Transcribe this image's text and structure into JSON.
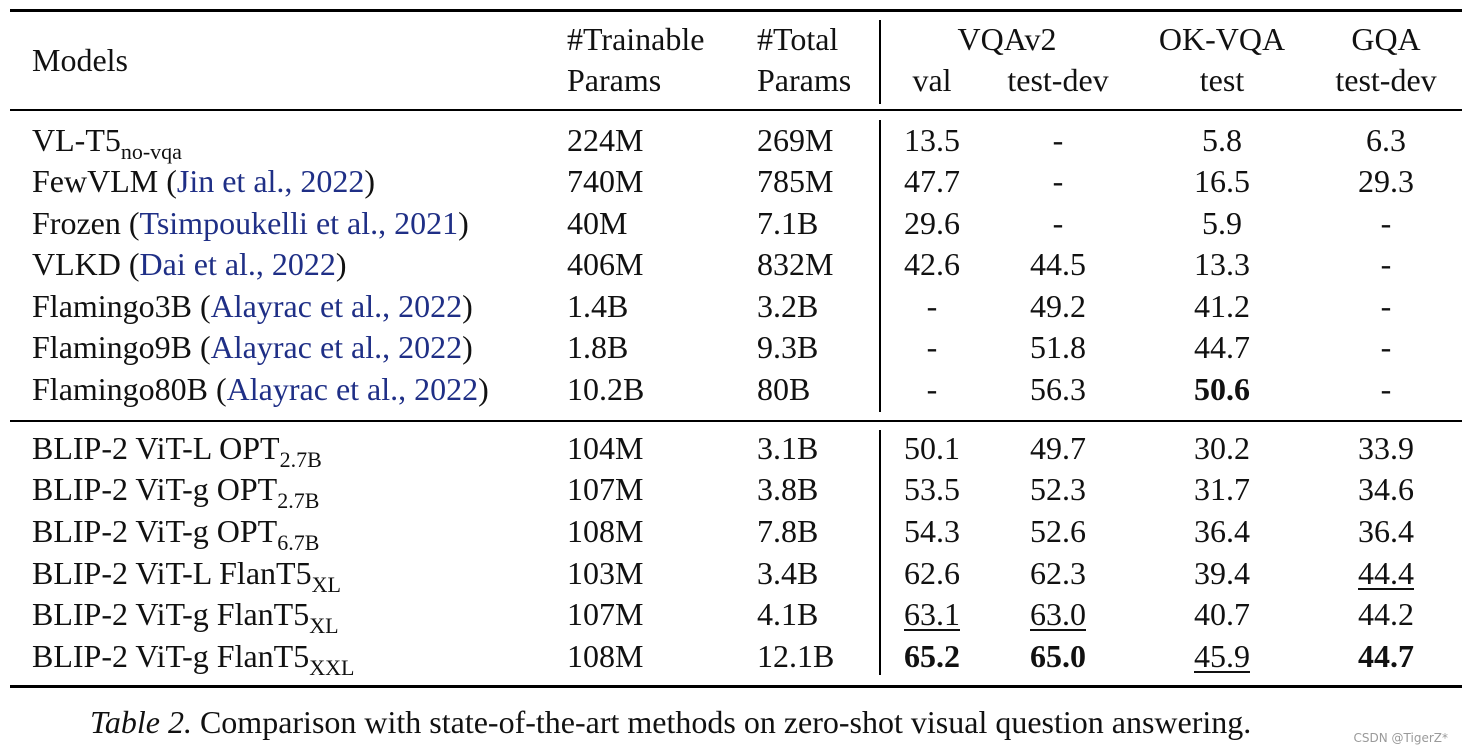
{
  "header": {
    "models": "Models",
    "trainable_1": "#Trainable",
    "trainable_2": "Params",
    "total_1": "#Total",
    "total_2": "Params",
    "vqav2": "VQAv2",
    "vqav2_val": "val",
    "vqav2_testdev": "test-dev",
    "okvqa": "OK-VQA",
    "okvqa_test": "test",
    "gqa": "GQA",
    "gqa_testdev": "test-dev"
  },
  "rows": [
    {
      "name": "VL-T5",
      "sub": "no-vqa",
      "paren_open": "",
      "cite": "",
      "paren_close": "",
      "trainable": "224M",
      "total": "269M",
      "val": "13.5",
      "testdev": "-",
      "okvqa": "5.8",
      "gqa": "6.3"
    },
    {
      "name": "FewVLM ",
      "sub": "",
      "paren_open": "(",
      "cite": "Jin et al., 2022",
      "paren_close": ")",
      "trainable": "740M",
      "total": "785M",
      "val": "47.7",
      "testdev": "-",
      "okvqa": "16.5",
      "gqa": "29.3"
    },
    {
      "name": "Frozen ",
      "sub": "",
      "paren_open": "(",
      "cite": "Tsimpoukelli et al., 2021",
      "paren_close": ")",
      "trainable": "40M",
      "total": "7.1B",
      "val": "29.6",
      "testdev": "-",
      "okvqa": "5.9",
      "gqa": "-"
    },
    {
      "name": "VLKD ",
      "sub": "",
      "paren_open": "(",
      "cite": "Dai et al., 2022",
      "paren_close": ")",
      "trainable": "406M",
      "total": "832M",
      "val": "42.6",
      "testdev": "44.5",
      "okvqa": "13.3",
      "gqa": "-"
    },
    {
      "name": "Flamingo3B ",
      "sub": "",
      "paren_open": "(",
      "cite": "Alayrac et al., 2022",
      "paren_close": ")",
      "trainable": "1.4B",
      "total": "3.2B",
      "val": "-",
      "testdev": "49.2",
      "okvqa": "41.2",
      "gqa": "-"
    },
    {
      "name": "Flamingo9B ",
      "sub": "",
      "paren_open": "(",
      "cite": "Alayrac et al., 2022",
      "paren_close": ")",
      "trainable": "1.8B",
      "total": "9.3B",
      "val": "-",
      "testdev": "51.8",
      "okvqa": "44.7",
      "gqa": "-"
    },
    {
      "name": "Flamingo80B ",
      "sub": "",
      "paren_open": "(",
      "cite": "Alayrac et al., 2022",
      "paren_close": ")",
      "trainable": "10.2B",
      "total": "80B",
      "val": "-",
      "testdev": "56.3",
      "okvqa": "50.6",
      "gqa": "-"
    },
    {
      "name": "BLIP-2 ViT-L OPT",
      "sub": "2.7B",
      "paren_open": "",
      "cite": "",
      "paren_close": "",
      "trainable": "104M",
      "total": "3.1B",
      "val": "50.1",
      "testdev": "49.7",
      "okvqa": "30.2",
      "gqa": "33.9"
    },
    {
      "name": "BLIP-2 ViT-g OPT",
      "sub": "2.7B",
      "paren_open": "",
      "cite": "",
      "paren_close": "",
      "trainable": "107M",
      "total": "3.8B",
      "val": "53.5",
      "testdev": "52.3",
      "okvqa": "31.7",
      "gqa": "34.6"
    },
    {
      "name": "BLIP-2 ViT-g OPT",
      "sub": "6.7B",
      "paren_open": "",
      "cite": "",
      "paren_close": "",
      "trainable": "108M",
      "total": "7.8B",
      "val": "54.3",
      "testdev": "52.6",
      "okvqa": "36.4",
      "gqa": "36.4"
    },
    {
      "name": "BLIP-2 ViT-L FlanT5",
      "sub": "XL",
      "paren_open": "",
      "cite": "",
      "paren_close": "",
      "trainable": "103M",
      "total": "3.4B",
      "val": "62.6",
      "testdev": "62.3",
      "okvqa": "39.4",
      "gqa": "44.4"
    },
    {
      "name": "BLIP-2 ViT-g FlanT5",
      "sub": "XL",
      "paren_open": "",
      "cite": "",
      "paren_close": "",
      "trainable": "107M",
      "total": "4.1B",
      "val": "63.1",
      "testdev": "63.0",
      "okvqa": "40.7",
      "gqa": "44.2"
    },
    {
      "name": "BLIP-2 ViT-g FlanT5",
      "sub": "XXL",
      "paren_open": "",
      "cite": "",
      "paren_close": "",
      "trainable": "108M",
      "total": "12.1B",
      "val": "65.2",
      "testdev": "65.0",
      "okvqa": "45.9",
      "gqa": "44.7"
    }
  ],
  "caption": {
    "label": "Table 2.",
    "text": " Comparison with state-of-the-art methods on zero-shot visual question answering."
  },
  "watermark": "CSDN @TigerZ*",
  "colors": {
    "citation": "#1f2f86",
    "text": "#111111"
  }
}
